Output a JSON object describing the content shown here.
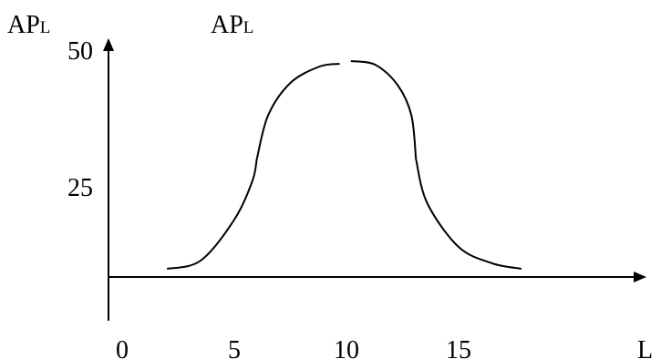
{
  "chart_data": {
    "type": "line",
    "header_labels": [
      {
        "main": "AP",
        "sub": "L"
      },
      {
        "main": "AP",
        "sub": "L"
      }
    ],
    "xlabel": "L",
    "x_ticks": [
      {
        "value": 0,
        "label": "0"
      },
      {
        "value": 5,
        "label": "5"
      },
      {
        "value": 10,
        "label": "10"
      },
      {
        "value": 15,
        "label": "15"
      }
    ],
    "y_ticks": [
      {
        "value": 25,
        "label": "25"
      },
      {
        "value": 50,
        "label": "50"
      }
    ],
    "xlim": [
      0,
      20
    ],
    "ylim": [
      0,
      55
    ],
    "grid": false,
    "legend": "none",
    "series": [
      {
        "segments": [
          [
            [
              2,
              10
            ],
            [
              3.5,
              11.5
            ],
            [
              5,
              19
            ],
            [
              5.8,
              26
            ],
            [
              6,
              30
            ]
          ],
          [
            [
              6,
              30
            ],
            [
              6.5,
              38
            ],
            [
              7.5,
              44
            ],
            [
              8.8,
              47
            ],
            [
              9.7,
              47.5
            ]
          ],
          [
            [
              10.2,
              48
            ],
            [
              11.3,
              47.3
            ],
            [
              12.3,
              43.5
            ],
            [
              12.9,
              38
            ],
            [
              13.1,
              30
            ]
          ],
          [
            [
              13.1,
              30
            ],
            [
              13.6,
              22
            ],
            [
              15,
              14
            ],
            [
              16.5,
              11
            ],
            [
              17.8,
              10
            ]
          ]
        ]
      }
    ]
  }
}
